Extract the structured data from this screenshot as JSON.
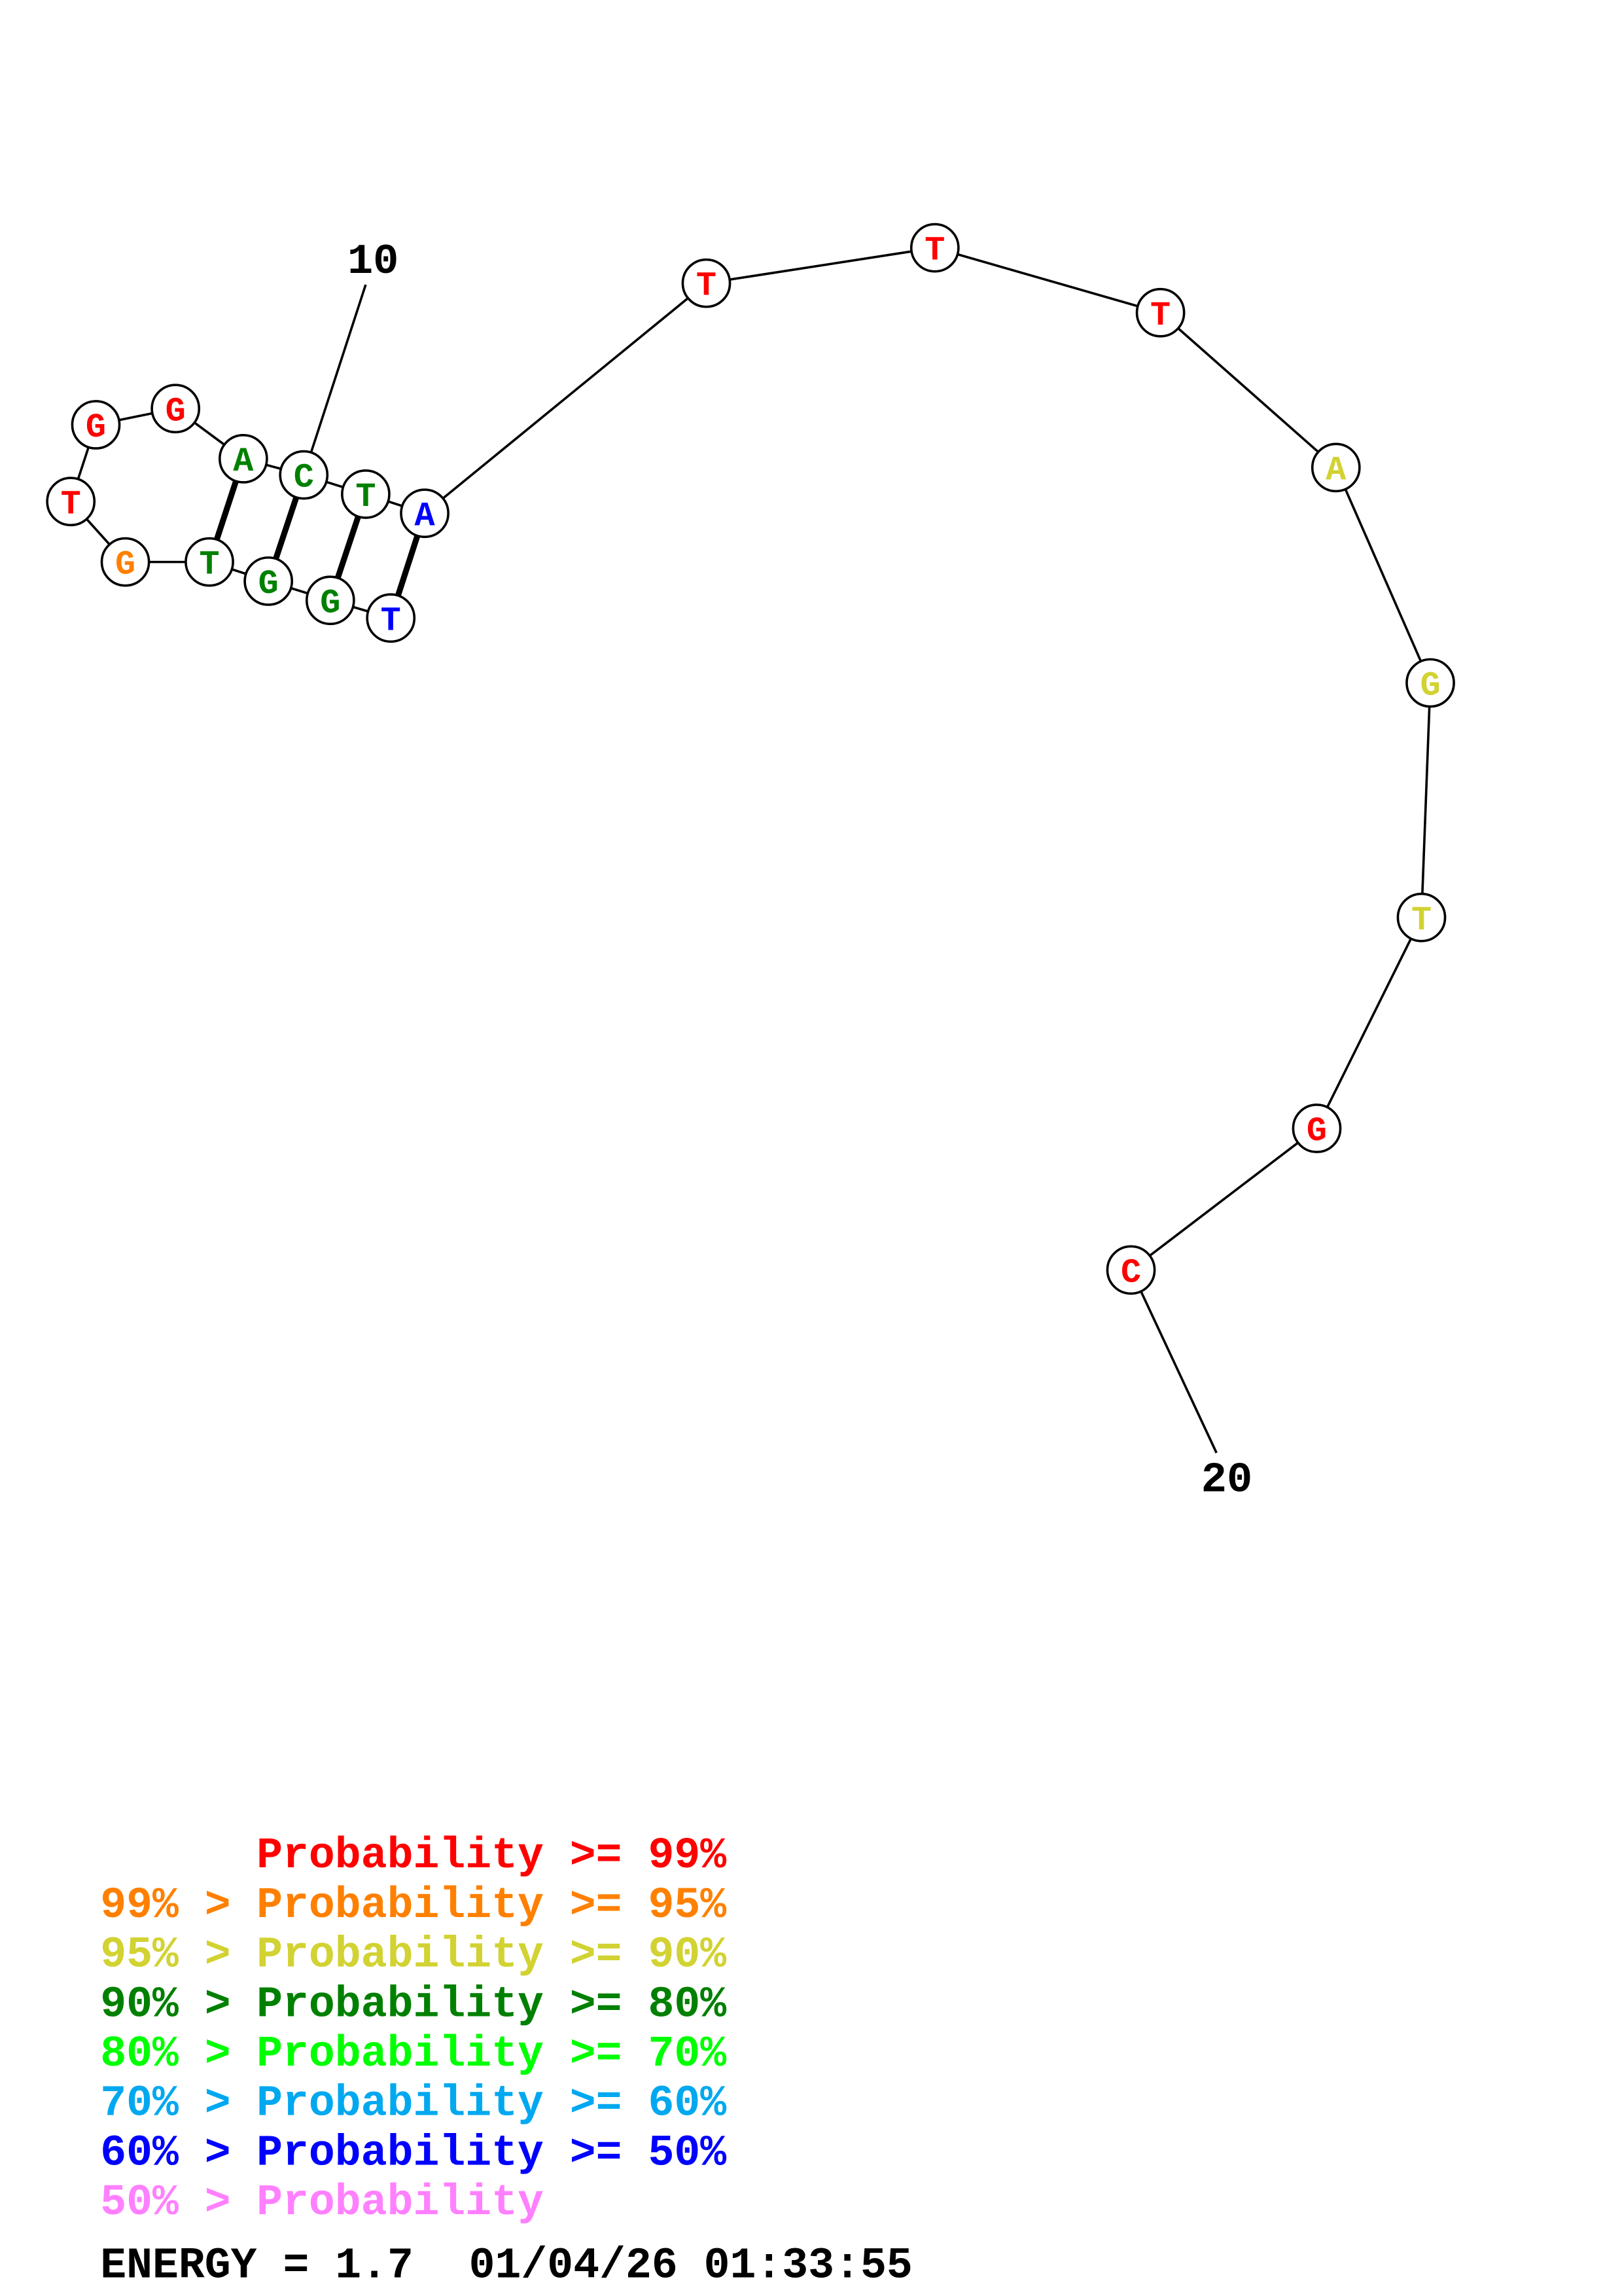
{
  "structure": {
    "nucleotides": [
      {
        "pos": 1,
        "base": "T",
        "prob_class": "60-50"
      },
      {
        "pos": 2,
        "base": "G",
        "prob_class": "90-80"
      },
      {
        "pos": 3,
        "base": "G",
        "prob_class": "90-80"
      },
      {
        "pos": 4,
        "base": "T",
        "prob_class": "90-80"
      },
      {
        "pos": 5,
        "base": "G",
        "prob_class": "99-95"
      },
      {
        "pos": 6,
        "base": "T",
        "prob_class": ">=99"
      },
      {
        "pos": 7,
        "base": "G",
        "prob_class": ">=99"
      },
      {
        "pos": 8,
        "base": "G",
        "prob_class": ">=99"
      },
      {
        "pos": 9,
        "base": "A",
        "prob_class": "90-80"
      },
      {
        "pos": 10,
        "base": "C",
        "prob_class": "90-80"
      },
      {
        "pos": 11,
        "base": "T",
        "prob_class": "90-80"
      },
      {
        "pos": 12,
        "base": "A",
        "prob_class": "60-50"
      },
      {
        "pos": 13,
        "base": "T",
        "prob_class": ">=99"
      },
      {
        "pos": 14,
        "base": "T",
        "prob_class": ">=99"
      },
      {
        "pos": 15,
        "base": "T",
        "prob_class": ">=99"
      },
      {
        "pos": 16,
        "base": "A",
        "prob_class": "95-90"
      },
      {
        "pos": 17,
        "base": "G",
        "prob_class": "95-90"
      },
      {
        "pos": 18,
        "base": "T",
        "prob_class": "95-90"
      },
      {
        "pos": 19,
        "base": "G",
        "prob_class": ">=99"
      },
      {
        "pos": 20,
        "base": "C",
        "prob_class": ">=99"
      }
    ],
    "base_pairs": [
      [
        1,
        12
      ],
      [
        2,
        11
      ],
      [
        3,
        10
      ],
      [
        4,
        9
      ]
    ],
    "position_labels": [
      {
        "pos": 10,
        "text": "10"
      },
      {
        "pos": 20,
        "text": "20"
      }
    ]
  },
  "legend": {
    "rows": [
      {
        "prefix": "",
        "text": "Probability >= 99%",
        "prob_class": ">=99",
        "color": "#ff0000"
      },
      {
        "prefix": "99% > ",
        "text": "Probability >= 95%",
        "prob_class": "99-95",
        "color": "#ff8000"
      },
      {
        "prefix": "95% > ",
        "text": "Probability >= 90%",
        "prob_class": "95-90",
        "color": "#d2d232"
      },
      {
        "prefix": "90% > ",
        "text": "Probability >= 80%",
        "prob_class": "90-80",
        "color": "#008000"
      },
      {
        "prefix": "80% > ",
        "text": "Probability >= 70%",
        "prob_class": "80-70",
        "color": "#00ff00"
      },
      {
        "prefix": "70% > ",
        "text": "Probability >= 60%",
        "prob_class": "70-60",
        "color": "#00a8f0"
      },
      {
        "prefix": "60% > ",
        "text": "Probability >= 50%",
        "prob_class": "60-50",
        "color": "#0000ff"
      },
      {
        "prefix": "50% > ",
        "text": "Probability",
        "prob_class": "<50",
        "color": "#ff80ff"
      }
    ]
  },
  "footer": {
    "energy": "ENERGY = 1.7",
    "timestamp": "01/04/26 01:33:55"
  }
}
